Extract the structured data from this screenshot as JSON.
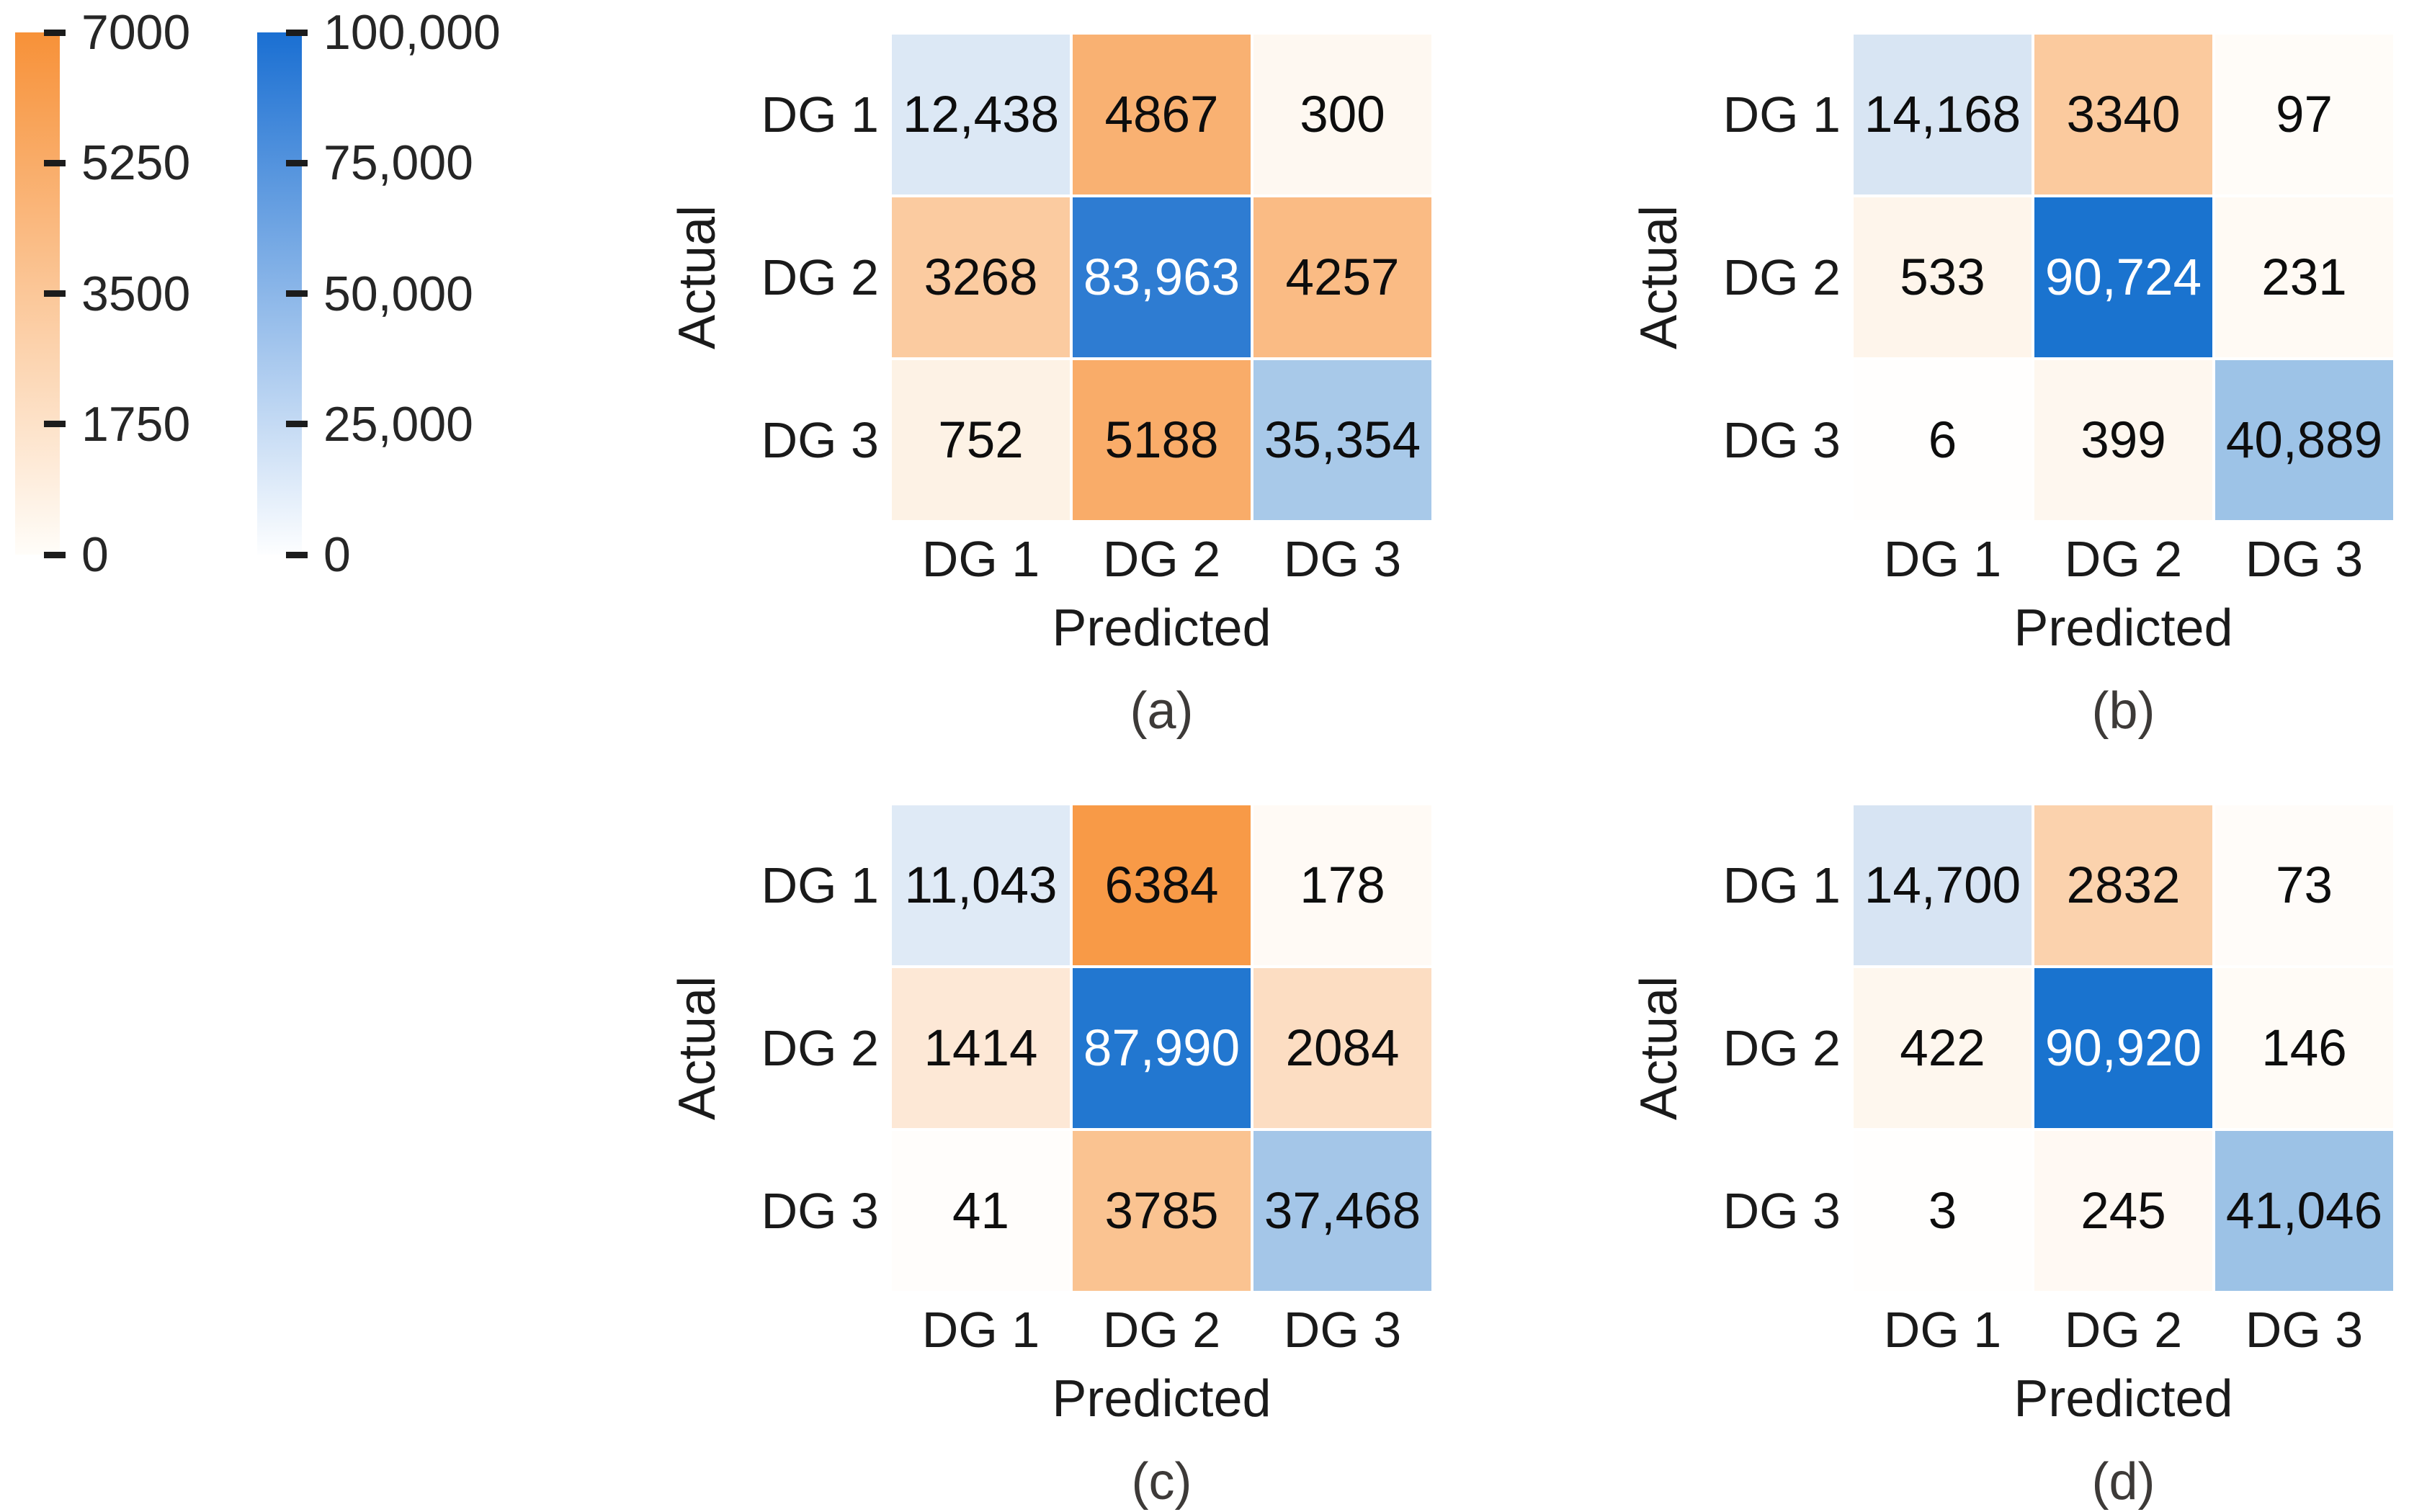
{
  "figure": {
    "description": "Four 3x3 confusion matrices comparing Actual vs Predicted distributed-generation (DG) classes, with separate colorbars for off-diagonal (orange) and diagonal (blue) counts"
  },
  "chart_data": {
    "type": "heatmap",
    "colorbars": [
      {
        "id": "orange-misclassified-scale",
        "orientation": "vertical",
        "min": 0,
        "max": 7000,
        "min_color": "#fffdf9",
        "max_color": "#f79138",
        "tick_labels": [
          "7000",
          "5250",
          "3500",
          "1750",
          "0"
        ]
      },
      {
        "id": "blue-correct-scale",
        "orientation": "vertical",
        "min": 0,
        "max": 100000,
        "min_color": "#fdfeff",
        "max_color": "#1a6fd2",
        "tick_labels": [
          "100,000",
          "75,000",
          "50,000",
          "25,000",
          "0"
        ]
      }
    ],
    "matrices": [
      {
        "panel": "a",
        "caption": "(a)",
        "xlabel": "Predicted",
        "ylabel": "Actual",
        "row_labels": [
          "DG 1",
          "DG 2",
          "DG 3"
        ],
        "col_labels": [
          "DG 1",
          "DG 2",
          "DG 3"
        ],
        "values": [
          [
            12438,
            4867,
            300
          ],
          [
            3268,
            83963,
            4257
          ],
          [
            752,
            5188,
            35354
          ]
        ],
        "cells": [
          {
            "text": "12,438",
            "bg": "#dce8f5",
            "fg": "#0d0d0d"
          },
          {
            "text": "4867",
            "bg": "#f9b172",
            "fg": "#0d0d0d"
          },
          {
            "text": "300",
            "bg": "#fef8f1",
            "fg": "#0d0d0d"
          },
          {
            "text": "3268",
            "bg": "#fbcba0",
            "fg": "#0d0d0d"
          },
          {
            "text": "83,963",
            "bg": "#2e7cd2",
            "fg": "#ffffff"
          },
          {
            "text": "4257",
            "bg": "#fabb84",
            "fg": "#0d0d0d"
          },
          {
            "text": "752",
            "bg": "#fdf2e5",
            "fg": "#0d0d0d"
          },
          {
            "text": "5188",
            "bg": "#f9ac69",
            "fg": "#0d0d0d"
          },
          {
            "text": "35,354",
            "bg": "#a8c9e9",
            "fg": "#0d0d0d"
          }
        ]
      },
      {
        "panel": "b",
        "caption": "(b)",
        "xlabel": "Predicted",
        "ylabel": "Actual",
        "row_labels": [
          "DG 1",
          "DG 2",
          "DG 3"
        ],
        "col_labels": [
          "DG 1",
          "DG 2",
          "DG 3"
        ],
        "values": [
          [
            14168,
            3340,
            97
          ],
          [
            533,
            90724,
            231
          ],
          [
            6,
            399,
            40889
          ]
        ],
        "cells": [
          {
            "text": "14,168",
            "bg": "#d8e5f3",
            "fg": "#0d0d0d"
          },
          {
            "text": "3340",
            "bg": "#fbca9e",
            "fg": "#0d0d0d"
          },
          {
            "text": "97",
            "bg": "#fffcf8",
            "fg": "#0d0d0d"
          },
          {
            "text": "533",
            "bg": "#fef5eb",
            "fg": "#0d0d0d"
          },
          {
            "text": "90,724",
            "bg": "#1a73cf",
            "fg": "#ffffff"
          },
          {
            "text": "231",
            "bg": "#fffaf4",
            "fg": "#0d0d0d"
          },
          {
            "text": "6",
            "bg": "#fffefd",
            "fg": "#0d0d0d"
          },
          {
            "text": "399",
            "bg": "#fef7ef",
            "fg": "#0d0d0d"
          },
          {
            "text": "40,889",
            "bg": "#9dc3e7",
            "fg": "#0d0d0d"
          }
        ]
      },
      {
        "panel": "c",
        "caption": "(c)",
        "xlabel": "Predicted",
        "ylabel": "Actual",
        "row_labels": [
          "DG 1",
          "DG 2",
          "DG 3"
        ],
        "col_labels": [
          "DG 1",
          "DG 2",
          "DG 3"
        ],
        "values": [
          [
            11043,
            6384,
            178
          ],
          [
            1414,
            87990,
            2084
          ],
          [
            41,
            3785,
            37468
          ]
        ],
        "cells": [
          {
            "text": "11,043",
            "bg": "#dfeaf6",
            "fg": "#0d0d0d"
          },
          {
            "text": "6384",
            "bg": "#f89a47",
            "fg": "#0d0d0d"
          },
          {
            "text": "178",
            "bg": "#fffaf5",
            "fg": "#0d0d0d"
          },
          {
            "text": "1414",
            "bg": "#fde8d6",
            "fg": "#0d0d0d"
          },
          {
            "text": "87,990",
            "bg": "#2277d0",
            "fg": "#ffffff"
          },
          {
            "text": "2084",
            "bg": "#fcddc2",
            "fg": "#0d0d0d"
          },
          {
            "text": "41",
            "bg": "#fffdfb",
            "fg": "#0d0d0d"
          },
          {
            "text": "3785",
            "bg": "#fac391",
            "fg": "#0d0d0d"
          },
          {
            "text": "37,468",
            "bg": "#a4c6e8",
            "fg": "#0d0d0d"
          }
        ]
      },
      {
        "panel": "d",
        "caption": "(d)",
        "xlabel": "Predicted",
        "ylabel": "Actual",
        "row_labels": [
          "DG 1",
          "DG 2",
          "DG 3"
        ],
        "col_labels": [
          "DG 1",
          "DG 2",
          "DG 3"
        ],
        "values": [
          [
            14700,
            2832,
            73
          ],
          [
            422,
            90920,
            146
          ],
          [
            3,
            245,
            41046
          ]
        ],
        "cells": [
          {
            "text": "14,700",
            "bg": "#d7e4f3",
            "fg": "#0d0d0d"
          },
          {
            "text": "2832",
            "bg": "#fbd2ad",
            "fg": "#0d0d0d"
          },
          {
            "text": "73",
            "bg": "#fffcf9",
            "fg": "#0d0d0d"
          },
          {
            "text": "422",
            "bg": "#fef7ee",
            "fg": "#0d0d0d"
          },
          {
            "text": "90,920",
            "bg": "#1973cf",
            "fg": "#ffffff"
          },
          {
            "text": "146",
            "bg": "#fffbf6",
            "fg": "#0d0d0d"
          },
          {
            "text": "3",
            "bg": "#fffefd",
            "fg": "#0d0d0d"
          },
          {
            "text": "245",
            "bg": "#fff9f3",
            "fg": "#0d0d0d"
          },
          {
            "text": "41,046",
            "bg": "#9cc2e6",
            "fg": "#0d0d0d"
          }
        ]
      }
    ]
  }
}
